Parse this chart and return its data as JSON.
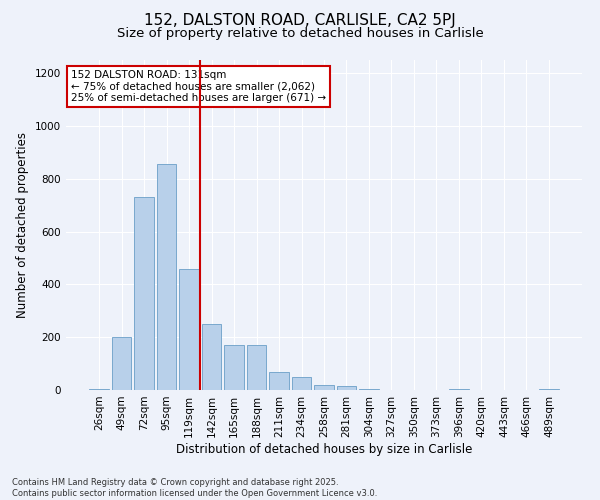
{
  "title1": "152, DALSTON ROAD, CARLISLE, CA2 5PJ",
  "title2": "Size of property relative to detached houses in Carlisle",
  "xlabel": "Distribution of detached houses by size in Carlisle",
  "ylabel": "Number of detached properties",
  "categories": [
    "26sqm",
    "49sqm",
    "72sqm",
    "95sqm",
    "119sqm",
    "142sqm",
    "165sqm",
    "188sqm",
    "211sqm",
    "234sqm",
    "258sqm",
    "281sqm",
    "304sqm",
    "327sqm",
    "350sqm",
    "373sqm",
    "396sqm",
    "420sqm",
    "443sqm",
    "466sqm",
    "489sqm"
  ],
  "values": [
    5,
    200,
    730,
    855,
    460,
    250,
    170,
    170,
    70,
    50,
    20,
    15,
    5,
    0,
    0,
    0,
    3,
    0,
    0,
    0,
    3
  ],
  "bar_color": "#b8d0ea",
  "bar_edge_color": "#6a9fc8",
  "background_color": "#eef2fa",
  "grid_color": "#ffffff",
  "vline_x": 4.5,
  "vline_color": "#cc0000",
  "annotation_text": "152 DALSTON ROAD: 131sqm\n← 75% of detached houses are smaller (2,062)\n25% of semi-detached houses are larger (671) →",
  "annotation_box_color": "#ffffff",
  "annotation_box_edge": "#cc0000",
  "footnote": "Contains HM Land Registry data © Crown copyright and database right 2025.\nContains public sector information licensed under the Open Government Licence v3.0.",
  "ylim": [
    0,
    1250
  ],
  "yticks": [
    0,
    200,
    400,
    600,
    800,
    1000,
    1200
  ],
  "title_fontsize": 11,
  "subtitle_fontsize": 9.5,
  "axis_label_fontsize": 8.5,
  "tick_fontsize": 7.5,
  "annotation_fontsize": 7.5,
  "footnote_fontsize": 6
}
